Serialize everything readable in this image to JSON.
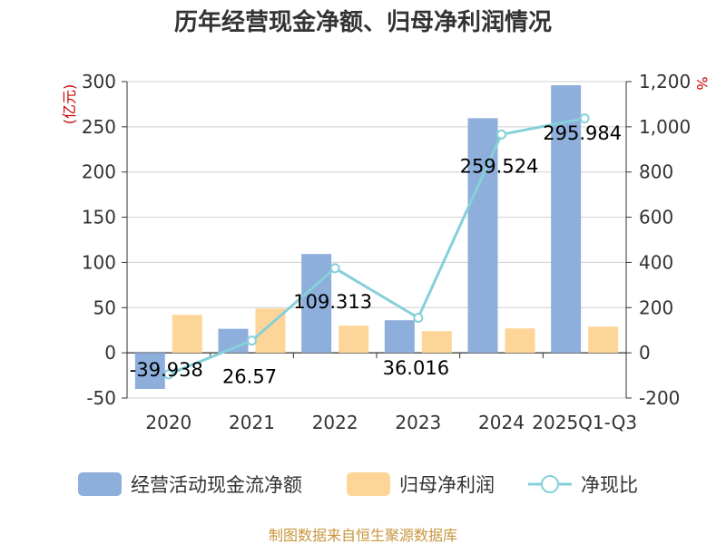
{
  "chart_data": {
    "type": "bar",
    "title": "历年经营现金净额、归母净利润情况",
    "categories": [
      "2020",
      "2021",
      "2022",
      "2023",
      "2024",
      "2025Q1-Q3"
    ],
    "y_left": {
      "unit": "(亿元)",
      "range": [
        -50,
        300
      ],
      "ticks": [
        -50,
        0,
        50,
        100,
        150,
        200,
        250,
        300
      ]
    },
    "y_right": {
      "unit": "%",
      "range": [
        -200,
        1200
      ],
      "ticks": [
        -200,
        0,
        200,
        400,
        600,
        800,
        1000,
        1200
      ]
    },
    "series": [
      {
        "name": "经营活动现金流净额",
        "kind": "bar",
        "axis": "left",
        "color": "#8eaedb",
        "values": [
          -39.938,
          26.57,
          109.313,
          36.016,
          259.524,
          295.984
        ],
        "labels": [
          "-39.938",
          "26.57",
          "109.313",
          "36.016",
          "259.524",
          "295.984"
        ]
      },
      {
        "name": "归母净利润",
        "kind": "bar",
        "axis": "left",
        "color": "#fdd599",
        "values": [
          42,
          49,
          30,
          24,
          27,
          29
        ]
      },
      {
        "name": "净现比",
        "kind": "line",
        "axis": "right",
        "color": "#86d0d9",
        "values": [
          -95,
          54,
          374,
          155,
          966,
          1037
        ]
      }
    ],
    "grid": true,
    "legend_position": "bottom"
  },
  "source": "制图数据来自恒生聚源数据库"
}
